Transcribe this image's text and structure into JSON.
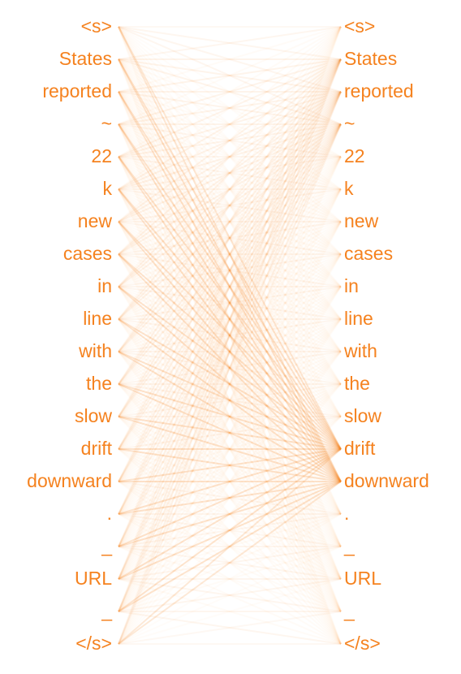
{
  "diagram": {
    "type": "attention-head-view",
    "accent_color": "#f5821f",
    "left_tokens": [
      "<s>",
      "States",
      "reported",
      "~",
      "22",
      "k",
      "new",
      "cases",
      "in",
      "line",
      "with",
      "the",
      "slow",
      "drift",
      "downward",
      ".",
      "_",
      "URL",
      "_",
      "</s>"
    ],
    "right_tokens": [
      "<s>",
      "States",
      "reported",
      "~",
      "22",
      "k",
      "new",
      "cases",
      "in",
      "line",
      "with",
      "the",
      "slow",
      "drift",
      "downward",
      ".",
      "_",
      "URL",
      "_",
      "</s>"
    ]
  }
}
